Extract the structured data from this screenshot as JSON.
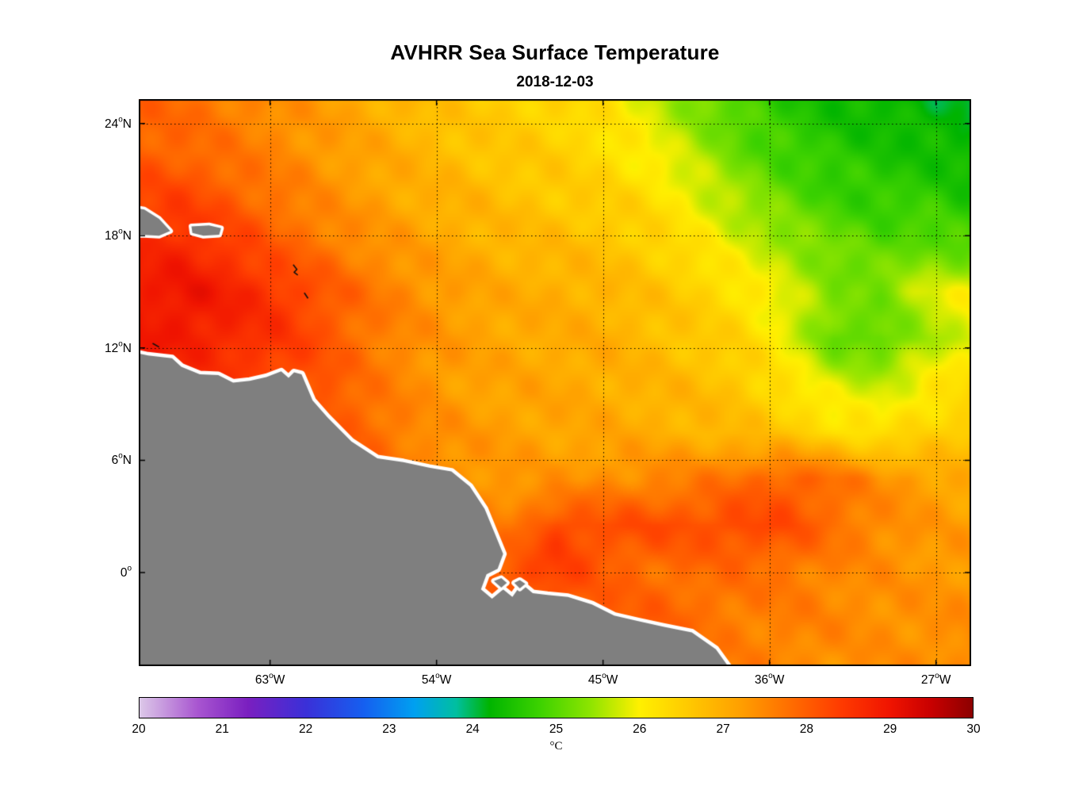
{
  "chart_data": {
    "type": "heatmap",
    "title": "AVHRR Sea Surface Temperature",
    "subtitle": "2018-12-03",
    "land_color": "#7f7f7f",
    "coast_halo_color": "#ffffff",
    "grid_on": true,
    "x_axis": {
      "range": [
        -70.1,
        -25.1
      ],
      "ticks": [
        {
          "lon": -63,
          "label": "63",
          "deg": "o",
          "suffix": "W"
        },
        {
          "lon": -54,
          "label": "54",
          "deg": "o",
          "suffix": "W"
        },
        {
          "lon": -45,
          "label": "45",
          "deg": "o",
          "suffix": "W"
        },
        {
          "lon": -36,
          "label": "36",
          "deg": "o",
          "suffix": "W"
        },
        {
          "lon": -27,
          "label": "27",
          "deg": "o",
          "suffix": "W"
        }
      ]
    },
    "y_axis": {
      "range": [
        -5.0,
        25.3
      ],
      "ticks": [
        {
          "lat": 24,
          "label": "24",
          "deg": "o",
          "suffix": "N"
        },
        {
          "lat": 18,
          "label": "18",
          "deg": "o",
          "suffix": "N"
        },
        {
          "lat": 12,
          "label": "12",
          "deg": "o",
          "suffix": "N"
        },
        {
          "lat": 6,
          "label": "6",
          "deg": "o",
          "suffix": "N"
        },
        {
          "lat": 0,
          "label": "0",
          "deg": "o",
          "suffix": ""
        }
      ]
    },
    "colorbar": {
      "min": 20,
      "max": 30,
      "ticks": [
        "20",
        "21",
        "22",
        "23",
        "24",
        "25",
        "26",
        "27",
        "28",
        "29",
        "30"
      ],
      "label": "°C",
      "colormap": [
        [
          20.0,
          "#DCC8E8"
        ],
        [
          20.7,
          "#A855D0"
        ],
        [
          21.3,
          "#7A1FC0"
        ],
        [
          22.0,
          "#3A30D8"
        ],
        [
          22.7,
          "#1560F0"
        ],
        [
          23.3,
          "#00A0F0"
        ],
        [
          23.8,
          "#00BFA0"
        ],
        [
          24.2,
          "#00B400"
        ],
        [
          24.8,
          "#3CD200"
        ],
        [
          25.4,
          "#8CE400"
        ],
        [
          26.0,
          "#FFF000"
        ],
        [
          26.6,
          "#FFC800"
        ],
        [
          27.2,
          "#FFA000"
        ],
        [
          27.8,
          "#FF6E00"
        ],
        [
          28.4,
          "#FF3C00"
        ],
        [
          29.0,
          "#F01400"
        ],
        [
          29.5,
          "#C80000"
        ],
        [
          30.0,
          "#8C0000"
        ]
      ]
    },
    "sst_grid": {
      "lons": [
        -70,
        -67.5,
        -65,
        -62.5,
        -60,
        -57.5,
        -55,
        -52.5,
        -50,
        -47.5,
        -45,
        -42.5,
        -40,
        -37.5,
        -35,
        -32.5,
        -30,
        -27.5,
        -25
      ],
      "lats": [
        25,
        22.5,
        20,
        17.5,
        15,
        12.5,
        10,
        7.5,
        5,
        2.5,
        0,
        -2.5,
        -5
      ],
      "values_c": [
        [
          27.9,
          27.8,
          27.6,
          27.4,
          27.2,
          27.0,
          26.8,
          26.6,
          26.5,
          26.4,
          26.2,
          25.8,
          25.3,
          24.9,
          24.6,
          24.4,
          24.3,
          24.2,
          24.1
        ],
        [
          28.0,
          27.9,
          27.7,
          27.5,
          27.3,
          27.1,
          26.9,
          26.7,
          26.6,
          26.5,
          26.3,
          26.0,
          25.6,
          25.1,
          24.8,
          24.6,
          24.5,
          24.4,
          24.3
        ],
        [
          28.3,
          28.3,
          28.0,
          27.7,
          27.4,
          27.2,
          27.0,
          26.9,
          26.7,
          26.6,
          26.5,
          26.3,
          25.9,
          25.5,
          25.1,
          24.8,
          24.7,
          24.7,
          24.5
        ],
        [
          28.7,
          28.7,
          28.4,
          28.0,
          27.7,
          27.4,
          27.2,
          27.0,
          26.9,
          26.8,
          26.7,
          26.5,
          26.2,
          25.8,
          25.5,
          25.2,
          25.0,
          25.1,
          24.9
        ],
        [
          28.9,
          29.0,
          28.8,
          28.5,
          28.1,
          27.7,
          27.4,
          27.2,
          27.0,
          27.0,
          26.9,
          26.7,
          26.5,
          26.2,
          25.8,
          25.3,
          25.3,
          25.8,
          26.0
        ],
        [
          28.9,
          28.9,
          28.7,
          28.5,
          28.1,
          27.7,
          27.4,
          27.2,
          27.1,
          27.0,
          27.0,
          26.8,
          26.6,
          26.4,
          25.9,
          25.1,
          25.0,
          25.5,
          25.9
        ],
        [
          28.6,
          28.5,
          28.4,
          28.3,
          28.1,
          27.7,
          27.4,
          27.2,
          27.1,
          27.1,
          27.0,
          26.9,
          26.8,
          26.6,
          26.2,
          25.8,
          25.7,
          26.1,
          26.3
        ],
        [
          28.5,
          28.5,
          28.4,
          28.3,
          28.2,
          27.9,
          27.5,
          27.3,
          27.2,
          27.1,
          27.1,
          27.0,
          26.9,
          26.8,
          26.6,
          26.3,
          26.2,
          26.4,
          26.6
        ],
        [
          28.3,
          28.3,
          28.2,
          28.1,
          28.0,
          27.8,
          27.6,
          27.4,
          27.3,
          27.3,
          27.4,
          27.5,
          27.6,
          27.8,
          28.0,
          27.8,
          27.4,
          27.2,
          27.0
        ],
        [
          28.2,
          28.2,
          28.1,
          28.0,
          27.9,
          27.8,
          27.7,
          27.6,
          27.6,
          28.3,
          28.2,
          28.2,
          28.2,
          28.3,
          28.2,
          27.8,
          27.5,
          27.3,
          27.2
        ],
        [
          28.2,
          28.2,
          28.1,
          28.0,
          27.9,
          27.9,
          27.8,
          27.8,
          28.2,
          28.4,
          28.0,
          27.8,
          27.8,
          27.8,
          27.7,
          27.5,
          27.4,
          27.3,
          27.3
        ],
        [
          28.0,
          28.0,
          28.0,
          27.9,
          27.9,
          27.9,
          27.8,
          27.8,
          27.9,
          28.0,
          28.0,
          28.0,
          27.8,
          27.6,
          27.6,
          27.5,
          27.4,
          27.4,
          27.4
        ],
        [
          27.9,
          27.9,
          27.9,
          27.8,
          27.8,
          27.8,
          27.8,
          27.8,
          27.8,
          27.9,
          27.9,
          27.8,
          27.7,
          27.6,
          27.5,
          27.4,
          27.4,
          27.4,
          27.5
        ]
      ]
    },
    "coastline": [
      [
        -71.0,
        11.9
      ],
      [
        -69.6,
        11.6
      ],
      [
        -68.3,
        11.45
      ],
      [
        -67.8,
        11.0
      ],
      [
        -66.8,
        10.6
      ],
      [
        -65.8,
        10.55
      ],
      [
        -65.0,
        10.15
      ],
      [
        -64.1,
        10.25
      ],
      [
        -63.2,
        10.45
      ],
      [
        -62.4,
        10.75
      ],
      [
        -62.0,
        10.4
      ],
      [
        -61.7,
        10.7
      ],
      [
        -61.3,
        10.6
      ],
      [
        -61.0,
        9.9
      ],
      [
        -60.7,
        9.2
      ],
      [
        -59.9,
        8.3
      ],
      [
        -58.6,
        7.0
      ],
      [
        -57.2,
        6.1
      ],
      [
        -55.8,
        5.9
      ],
      [
        -54.4,
        5.6
      ],
      [
        -53.2,
        5.4
      ],
      [
        -52.2,
        4.6
      ],
      [
        -51.4,
        3.4
      ],
      [
        -50.9,
        2.2
      ],
      [
        -50.4,
        1.0
      ],
      [
        -50.7,
        0.2
      ],
      [
        -51.3,
        -0.1
      ],
      [
        -51.6,
        -0.9
      ],
      [
        -51.0,
        -1.4
      ],
      [
        -50.4,
        -0.9
      ],
      [
        -49.9,
        -1.3
      ],
      [
        -49.4,
        -0.6
      ],
      [
        -48.8,
        -1.1
      ],
      [
        -48.0,
        -1.2
      ],
      [
        -46.9,
        -1.3
      ],
      [
        -45.6,
        -1.7
      ],
      [
        -44.4,
        -2.3
      ],
      [
        -43.1,
        -2.6
      ],
      [
        -41.7,
        -2.9
      ],
      [
        -40.2,
        -3.2
      ],
      [
        -38.9,
        -4.1
      ],
      [
        -38.1,
        -5.2
      ],
      [
        -37.9,
        -6.0
      ],
      [
        -71.0,
        -6.0
      ]
    ],
    "islands": {
      "filled": [
        [
          [
            -71.0,
            19.6
          ],
          [
            -69.8,
            19.4
          ],
          [
            -69.0,
            18.9
          ],
          [
            -68.4,
            18.25
          ],
          [
            -69.0,
            18.0
          ],
          [
            -70.0,
            18.05
          ],
          [
            -71.0,
            17.85
          ]
        ],
        [
          [
            -67.25,
            18.5
          ],
          [
            -66.3,
            18.55
          ],
          [
            -65.65,
            18.4
          ],
          [
            -65.75,
            18.05
          ],
          [
            -66.6,
            18.0
          ],
          [
            -67.2,
            18.15
          ]
        ],
        [
          [
            -50.9,
            -0.45
          ],
          [
            -50.5,
            -0.3
          ],
          [
            -50.2,
            -0.55
          ],
          [
            -50.5,
            -0.8
          ]
        ],
        [
          [
            -49.8,
            -0.55
          ],
          [
            -49.5,
            -0.4
          ],
          [
            -49.2,
            -0.6
          ],
          [
            -49.5,
            -0.85
          ]
        ]
      ],
      "outlined": [
        [
          [
            -61.75,
            16.45
          ],
          [
            -61.55,
            16.2
          ],
          [
            -61.7,
            16.05
          ],
          [
            -61.5,
            15.9
          ]
        ],
        [
          [
            -61.15,
            14.95
          ],
          [
            -60.95,
            14.65
          ]
        ],
        [
          [
            -69.35,
            12.25
          ],
          [
            -69.0,
            12.05
          ]
        ]
      ]
    }
  }
}
